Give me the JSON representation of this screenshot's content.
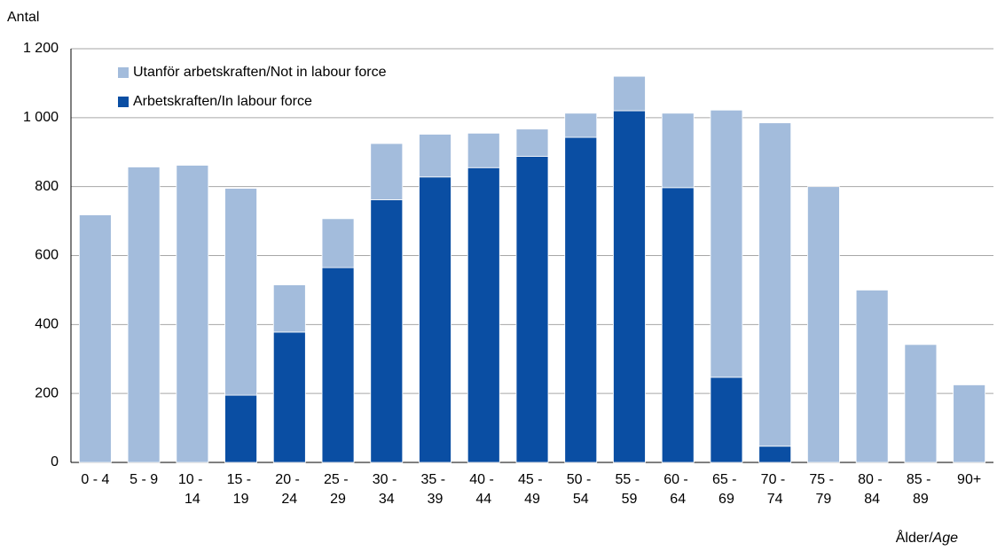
{
  "chart_data": {
    "type": "stacked_bar",
    "y_label": "Antal",
    "x_label_sv": "Ålder/",
    "x_label_en": "Age",
    "categories": [
      "0 - 4",
      "5 - 9",
      "10 - 14",
      "15 - 19",
      "20 - 24",
      "25 - 29",
      "30 - 34",
      "35 - 39",
      "40 - 44",
      "45 - 49",
      "50 - 54",
      "55 - 59",
      "60 - 64",
      "65 - 69",
      "70 - 74",
      "75 - 79",
      "80 - 84",
      "85 - 89",
      "90+"
    ],
    "series": [
      {
        "name": "Arbetskraften/In labour force",
        "color": "#0a4ea3",
        "values": [
          0,
          0,
          0,
          195,
          378,
          565,
          762,
          828,
          855,
          888,
          943,
          1020,
          797,
          247,
          47,
          0,
          0,
          0,
          0
        ]
      },
      {
        "name": "Utanför arbetskraften/Not in labour force",
        "color": "#a3bcdc",
        "values": [
          718,
          857,
          862,
          600,
          137,
          142,
          163,
          124,
          100,
          79,
          70,
          100,
          216,
          775,
          938,
          800,
          500,
          342,
          225
        ]
      }
    ],
    "ylim": [
      0,
      1200
    ],
    "yticks": [
      0,
      200,
      400,
      600,
      800,
      {
        "value": 1000,
        "label": "1 000"
      },
      {
        "value": 1200,
        "label": "1 200"
      }
    ],
    "grid": true
  }
}
